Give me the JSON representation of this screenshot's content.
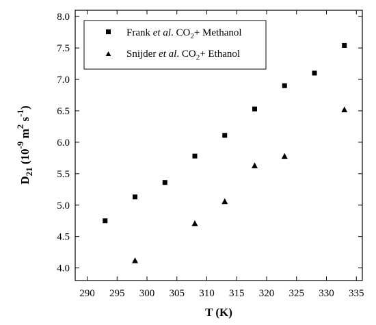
{
  "chart_data": {
    "type": "scatter",
    "xlabel": "T (K)",
    "ylabel": {
      "base": "D",
      "sub": "21",
      "open": " (10",
      "exp1": "-9",
      "m": " m",
      "exp2": "2",
      "s": " s",
      "exp3": "-1",
      "close": ")"
    },
    "xlim": [
      288,
      336
    ],
    "ylim": [
      3.8,
      8.1
    ],
    "xticks": [
      290,
      295,
      300,
      305,
      310,
      315,
      320,
      325,
      330,
      335
    ],
    "yticks": [
      4.0,
      4.5,
      5.0,
      5.5,
      6.0,
      6.5,
      7.0,
      7.5,
      8.0
    ],
    "legend_position": "top-left",
    "series": [
      {
        "legend": {
          "a": "Frank ",
          "i": "et al",
          "b": ". CO",
          "sub": "2",
          "c": "+ Methanol"
        },
        "marker": "square",
        "x": [
          293,
          298,
          303,
          308,
          313,
          318,
          323,
          328,
          333
        ],
        "y": [
          4.75,
          5.13,
          5.36,
          5.78,
          6.11,
          6.53,
          6.9,
          7.1,
          7.54
        ]
      },
      {
        "legend": {
          "a": "Snijder ",
          "i": "et al",
          "b": ". CO",
          "sub": "2",
          "c": "+ Ethanol"
        },
        "marker": "triangle",
        "x": [
          298,
          308,
          313,
          318,
          323,
          333
        ],
        "y": [
          4.12,
          4.71,
          5.06,
          5.63,
          5.78,
          6.52
        ]
      }
    ]
  }
}
